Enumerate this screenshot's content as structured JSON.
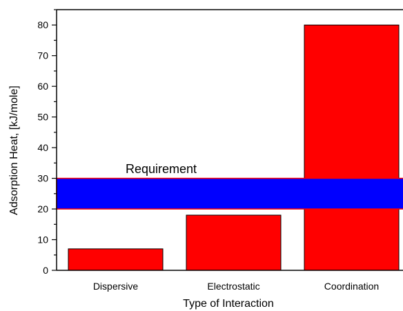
{
  "chart_data": {
    "type": "bar",
    "title": "",
    "xlabel": "Type of Interaction",
    "ylabel": "Adsorption Heat, [kJ/mole]",
    "categories": [
      "Dispersive",
      "Electrostatic",
      "Coordination"
    ],
    "values": [
      7,
      18,
      80
    ],
    "ylim": [
      0,
      85
    ],
    "yticks": [
      0,
      10,
      20,
      30,
      40,
      50,
      60,
      70,
      80
    ],
    "grid": false,
    "bar_color": "#ff0000",
    "band": {
      "label": "Requirement",
      "from": 20,
      "to": 30,
      "color": "#0000ff",
      "edge_color": "#ff0000"
    }
  }
}
